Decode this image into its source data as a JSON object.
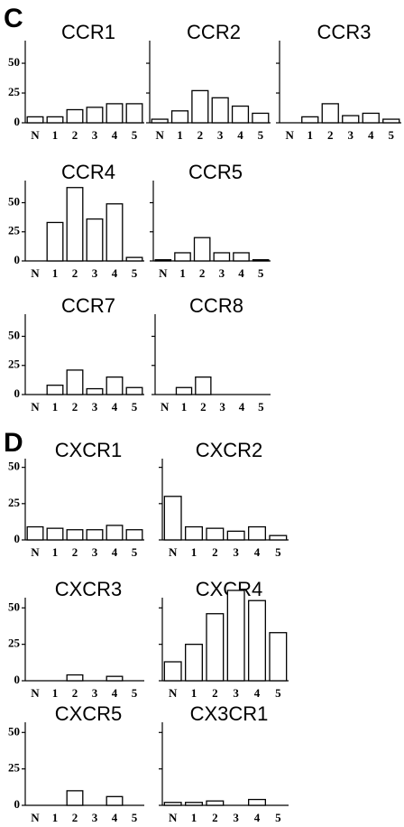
{
  "panel_labels": [
    "C",
    "D"
  ],
  "chart_data": [
    {
      "type": "bar",
      "title": "CCR1",
      "categories": [
        "N",
        "1",
        "2",
        "3",
        "4",
        "5"
      ],
      "values": [
        5,
        5,
        11,
        13,
        16,
        16
      ],
      "ylim": [
        0,
        69
      ],
      "yticks": [
        0,
        25,
        50
      ],
      "tick_labels": true,
      "color": "#ffffff"
    },
    {
      "type": "bar",
      "title": "CCR2",
      "categories": [
        "N",
        "1",
        "2",
        "3",
        "4",
        "5"
      ],
      "values": [
        3,
        10,
        27,
        21,
        14,
        8
      ],
      "ylim": [
        0,
        69
      ],
      "yticks": [
        0,
        25,
        50
      ],
      "tick_labels": false,
      "color": "#ffffff"
    },
    {
      "type": "bar",
      "title": "CCR3",
      "categories": [
        "N",
        "1",
        "2",
        "3",
        "4",
        "5"
      ],
      "values": [
        0,
        5,
        16,
        6,
        8,
        3
      ],
      "ylim": [
        0,
        69
      ],
      "yticks": [
        0,
        25,
        50
      ],
      "tick_labels": false,
      "color": "#ffffff"
    },
    {
      "type": "bar",
      "title": "CCR4",
      "categories": [
        "N",
        "1",
        "2",
        "3",
        "4",
        "5"
      ],
      "values": [
        0,
        33,
        63,
        36,
        49,
        3
      ],
      "ylim": [
        0,
        69
      ],
      "yticks": [
        0,
        25,
        50
      ],
      "tick_labels": true,
      "color": "#ffffff"
    },
    {
      "type": "bar",
      "title": "CCR5",
      "categories": [
        "N",
        "1",
        "2",
        "3",
        "4",
        "5"
      ],
      "values": [
        1,
        7,
        20,
        7,
        7,
        1
      ],
      "ylim": [
        0,
        69
      ],
      "yticks": [
        0,
        25,
        50
      ],
      "tick_labels": false,
      "color": "#ffffff"
    },
    {
      "type": "bar",
      "title": "CCR7",
      "categories": [
        "N",
        "1",
        "2",
        "3",
        "4",
        "5"
      ],
      "values": [
        0,
        8,
        21,
        5,
        15,
        6
      ],
      "ylim": [
        0,
        69
      ],
      "yticks": [
        0,
        25,
        50
      ],
      "tick_labels": true,
      "color": "#ffffff"
    },
    {
      "type": "bar",
      "title": "CCR8",
      "categories": [
        "N",
        "1",
        "2",
        "3",
        "4",
        "5"
      ],
      "values": [
        0,
        6,
        15,
        0,
        0,
        0
      ],
      "ylim": [
        0,
        69
      ],
      "yticks": [
        0,
        25,
        50
      ],
      "tick_labels": false,
      "color": "#ffffff"
    },
    {
      "type": "bar",
      "title": "CXCR1",
      "categories": [
        "N",
        "1",
        "2",
        "3",
        "4",
        "5"
      ],
      "values": [
        9,
        8,
        7,
        7,
        10,
        7
      ],
      "ylim": [
        0,
        56
      ],
      "yticks": [
        0,
        25,
        50
      ],
      "tick_labels": true,
      "color": "#ffffff"
    },
    {
      "type": "bar",
      "title": "CXCR2",
      "categories": [
        "N",
        "1",
        "2",
        "3",
        "4",
        "5"
      ],
      "values": [
        30,
        9,
        8,
        6,
        9,
        3
      ],
      "ylim": [
        0,
        56
      ],
      "yticks": [
        0,
        25,
        50
      ],
      "tick_labels": false,
      "color": "#ffffff"
    },
    {
      "type": "bar",
      "title": "CXCR3",
      "categories": [
        "N",
        "1",
        "2",
        "3",
        "4",
        "5"
      ],
      "values": [
        0,
        0,
        4,
        0,
        3,
        0
      ],
      "ylim": [
        0,
        57
      ],
      "yticks": [
        0,
        25,
        50
      ],
      "tick_labels": true,
      "color": "#ffffff"
    },
    {
      "type": "bar",
      "title": "CXCR4",
      "categories": [
        "N",
        "1",
        "2",
        "3",
        "4",
        "5"
      ],
      "values": [
        13,
        25,
        46,
        62,
        55,
        33
      ],
      "ylim": [
        0,
        57
      ],
      "yticks": [
        0,
        25,
        50
      ],
      "tick_labels": false,
      "color": "#ffffff"
    },
    {
      "type": "bar",
      "title": "CXCR5",
      "categories": [
        "N",
        "1",
        "2",
        "3",
        "4",
        "5"
      ],
      "values": [
        0,
        0,
        10,
        0,
        6,
        0
      ],
      "ylim": [
        0,
        57
      ],
      "yticks": [
        0,
        25,
        50
      ],
      "tick_labels": true,
      "color": "#ffffff"
    },
    {
      "type": "bar",
      "title": "CX3CR1",
      "categories": [
        "N",
        "1",
        "2",
        "3",
        "4",
        "5"
      ],
      "values": [
        2,
        2,
        3,
        0,
        4,
        0
      ],
      "ylim": [
        0,
        57
      ],
      "yticks": [
        0,
        25,
        50
      ],
      "tick_labels": false,
      "color": "#ffffff"
    }
  ]
}
